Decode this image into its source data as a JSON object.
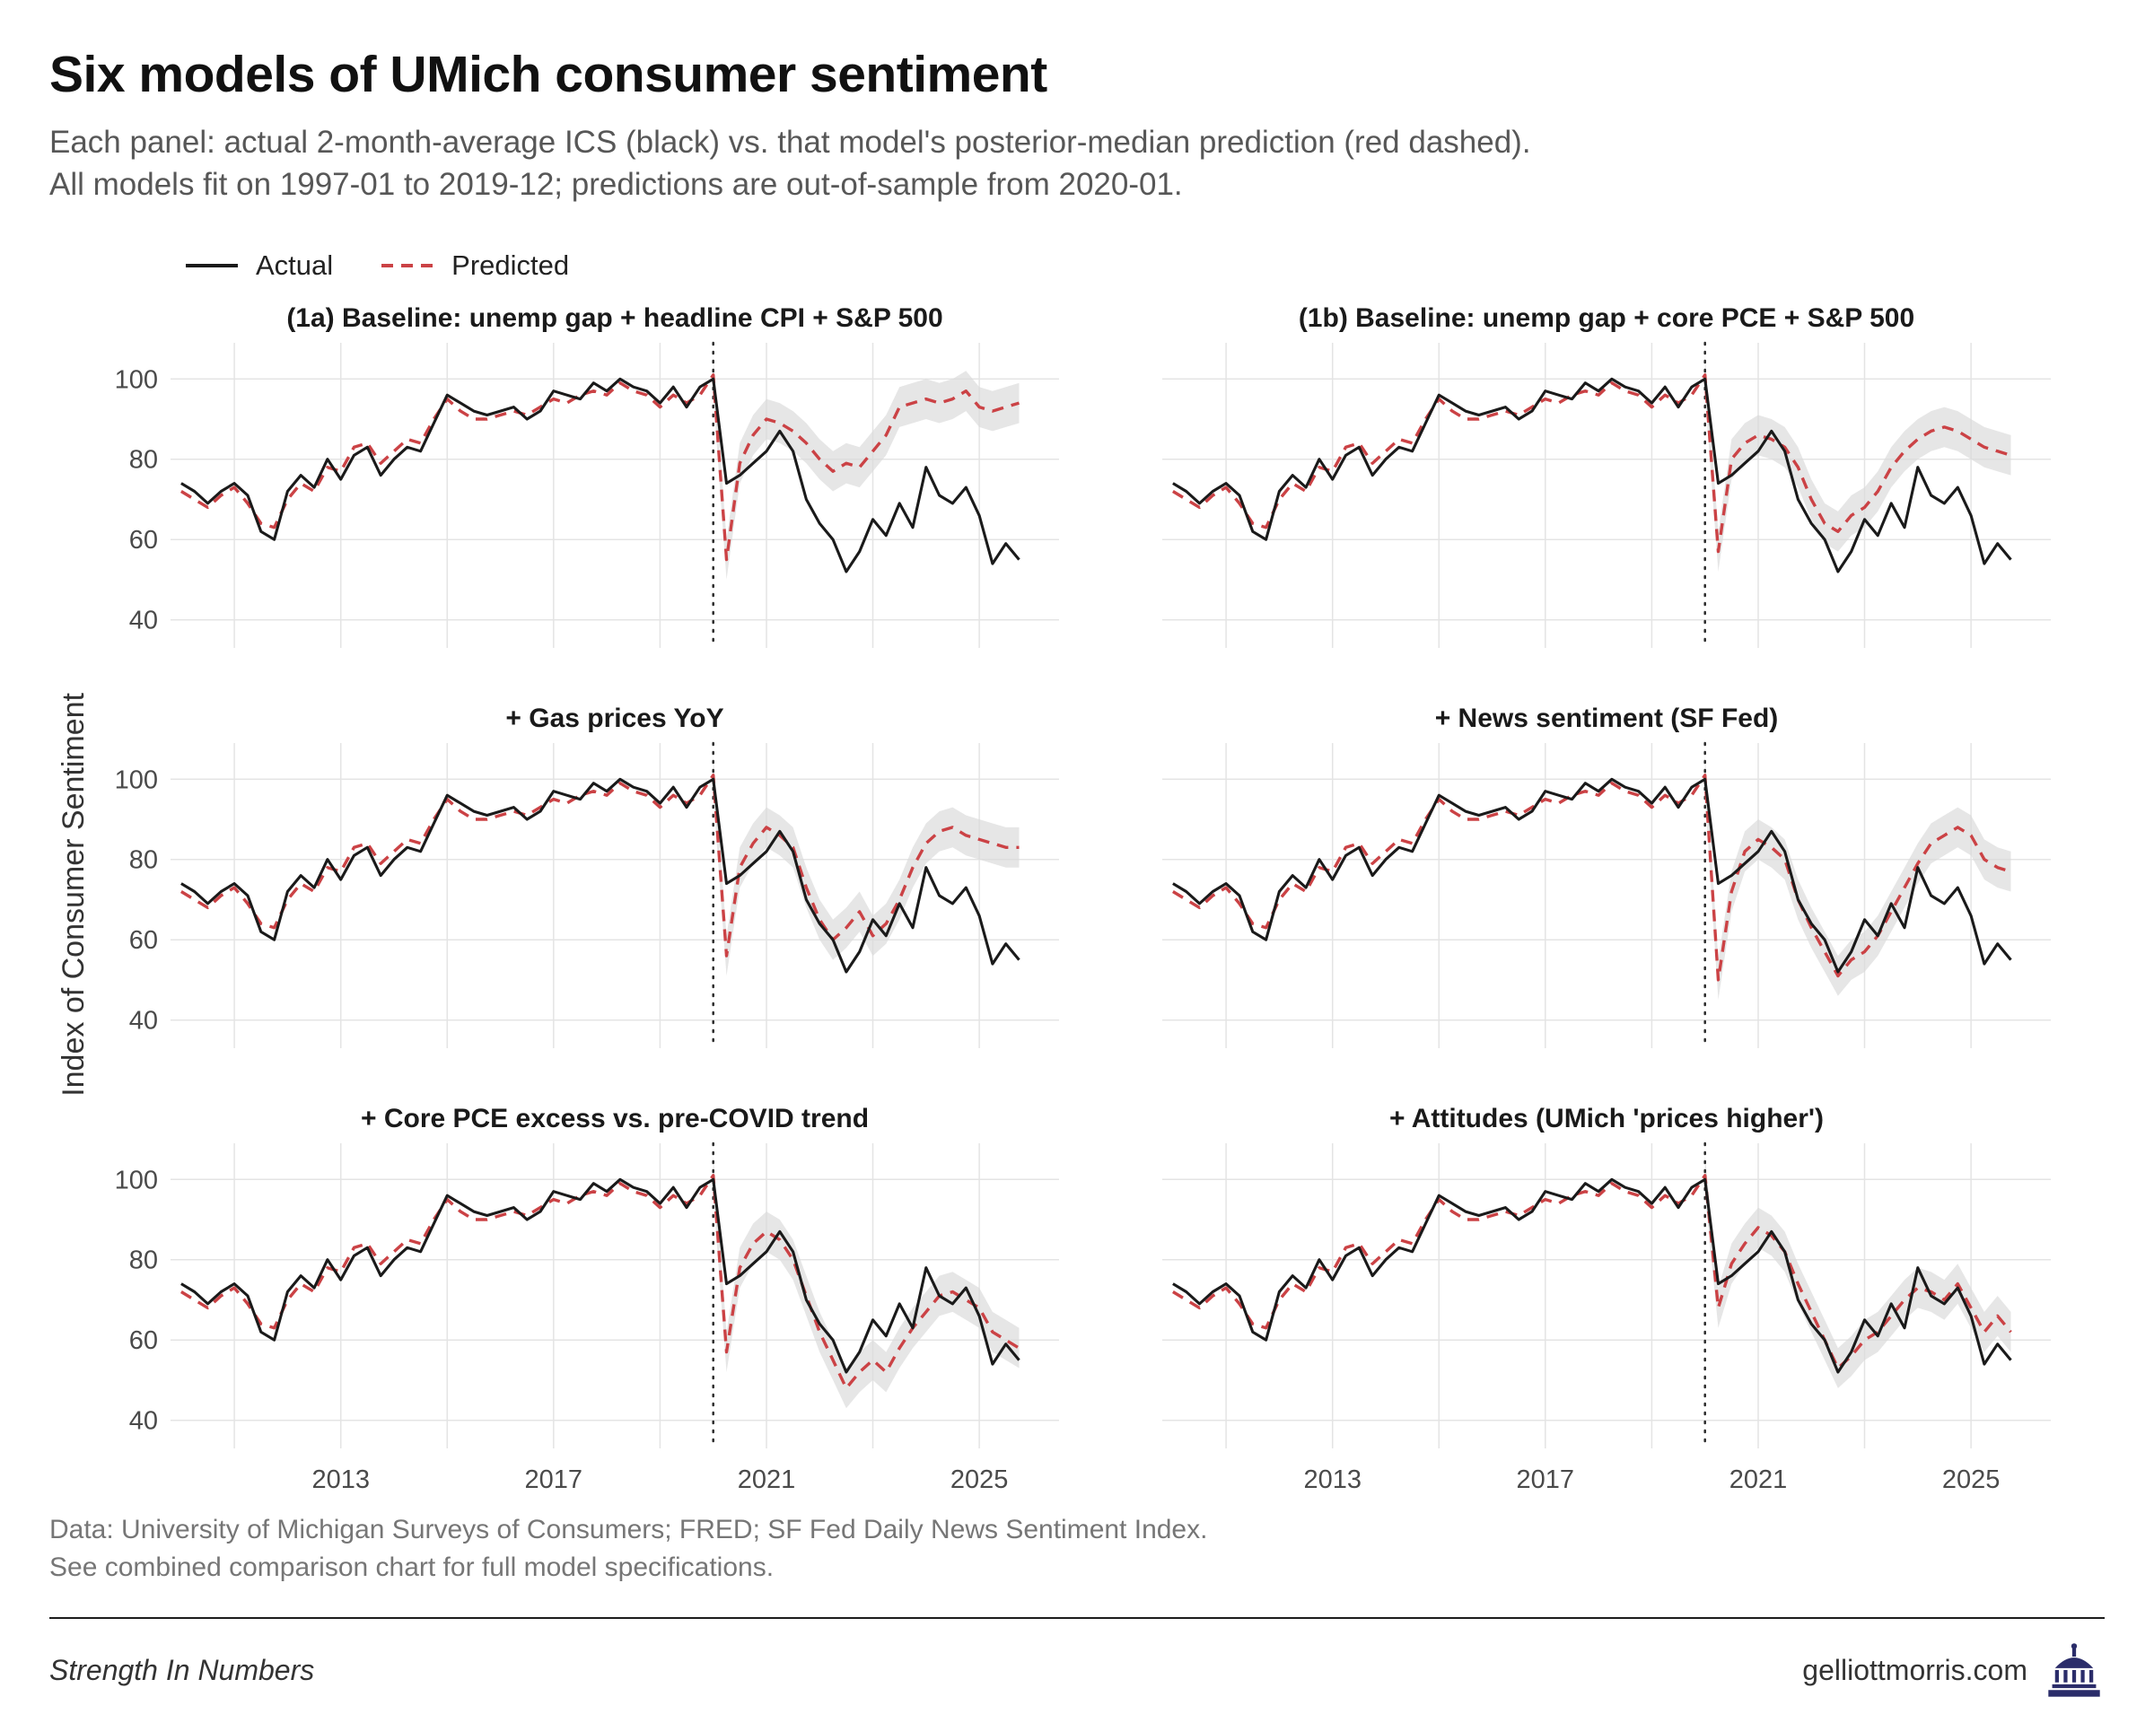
{
  "page": {
    "title": "Six models of UMich consumer sentiment",
    "subtitle_line1": "Each panel: actual 2-month-average ICS (black) vs. that model's posterior-median prediction (red dashed).",
    "subtitle_line2": "All models fit on 1997-01 to 2019-12; predictions are out-of-sample from 2020-01.",
    "legend": {
      "actual": "Actual",
      "predicted": "Predicted"
    },
    "ylabel": "Index of Consumer Sentiment",
    "caption_line1": "Data: University of Michigan Surveys of Consumers; FRED; SF Fed Daily News Sentiment Index.",
    "caption_line2": "See combined comparison chart for full model specifications.",
    "footer_left": "Strength In Numbers",
    "footer_right": "gelliottmorris.com"
  },
  "colors": {
    "actual": "#1a1a1a",
    "predicted": "#cb4245",
    "band": "#d8d8d8",
    "grid": "#e4e4e4",
    "vline": "#2a2a2a",
    "tick_text": "#4a4a4a",
    "logo": "#2b2d6a"
  },
  "chart_data": {
    "type": "line",
    "title": "Six models of UMich consumer sentiment",
    "xlabel": "",
    "ylabel": "Index of Consumer Sentiment",
    "xlim": [
      2009.8,
      2026.5
    ],
    "ylim": [
      33,
      109
    ],
    "x_ticks": [
      2013,
      2017,
      2021,
      2025
    ],
    "y_ticks": [
      40,
      60,
      80,
      100
    ],
    "vline_x": 2020,
    "band_halfwidth": 5,
    "legend_position": "top-left",
    "grid": true,
    "x": [
      2010,
      2010.25,
      2010.5,
      2010.75,
      2011,
      2011.25,
      2011.5,
      2011.75,
      2012,
      2012.25,
      2012.5,
      2012.75,
      2013,
      2013.25,
      2013.5,
      2013.75,
      2014,
      2014.25,
      2014.5,
      2014.75,
      2015,
      2015.25,
      2015.5,
      2015.75,
      2016,
      2016.25,
      2016.5,
      2016.75,
      2017,
      2017.25,
      2017.5,
      2017.75,
      2018,
      2018.25,
      2018.5,
      2018.75,
      2019,
      2019.25,
      2019.5,
      2019.75,
      2020,
      2020.25,
      2020.5,
      2020.75,
      2021,
      2021.25,
      2021.5,
      2021.75,
      2022,
      2022.25,
      2022.5,
      2022.75,
      2023,
      2023.25,
      2023.5,
      2023.75,
      2024,
      2024.25,
      2024.5,
      2024.75,
      2025,
      2025.25,
      2025.5,
      2025.75
    ],
    "actual": [
      74,
      72,
      69,
      72,
      74,
      71,
      62,
      60,
      72,
      76,
      73,
      80,
      75,
      81,
      83,
      76,
      80,
      83,
      82,
      89,
      96,
      94,
      92,
      91,
      92,
      93,
      90,
      92,
      97,
      96,
      95,
      99,
      97,
      100,
      98,
      97,
      94,
      98,
      93,
      98,
      100,
      74,
      76,
      79,
      82,
      87,
      82,
      70,
      64,
      60,
      52,
      57,
      65,
      61,
      69,
      63,
      78,
      71,
      69,
      73,
      66,
      54,
      59,
      55
    ],
    "panels": [
      {
        "title": "(1a) Baseline: unemp gap + headline CPI + S&P 500",
        "predicted": [
          72,
          70,
          68,
          71,
          73,
          69,
          64,
          63,
          70,
          74,
          72,
          78,
          77,
          83,
          84,
          79,
          82,
          85,
          84,
          90,
          95,
          92,
          90,
          90,
          91,
          92,
          91,
          93,
          95,
          94,
          96,
          97,
          96,
          99,
          97,
          96,
          93,
          96,
          94,
          96,
          101,
          55,
          79,
          86,
          90,
          89,
          87,
          84,
          80,
          77,
          79,
          78,
          82,
          86,
          93,
          94,
          95,
          94,
          95,
          97,
          93,
          92,
          93,
          94
        ]
      },
      {
        "title": "(1b) Baseline: unemp gap + core PCE + S&P 500",
        "predicted": [
          72,
          70,
          68,
          71,
          73,
          69,
          64,
          63,
          70,
          74,
          72,
          78,
          77,
          83,
          84,
          79,
          82,
          85,
          84,
          90,
          95,
          92,
          90,
          90,
          91,
          92,
          91,
          93,
          95,
          94,
          96,
          97,
          96,
          99,
          97,
          96,
          93,
          96,
          94,
          96,
          101,
          57,
          80,
          84,
          86,
          85,
          83,
          78,
          70,
          64,
          62,
          66,
          68,
          72,
          78,
          82,
          85,
          87,
          88,
          87,
          85,
          83,
          82,
          81
        ]
      },
      {
        "title": "+ Gas prices YoY",
        "predicted": [
          72,
          70,
          68,
          71,
          73,
          69,
          64,
          63,
          70,
          74,
          72,
          78,
          77,
          83,
          84,
          79,
          82,
          85,
          84,
          90,
          95,
          92,
          90,
          90,
          91,
          92,
          91,
          93,
          95,
          94,
          96,
          97,
          96,
          99,
          97,
          96,
          93,
          96,
          94,
          96,
          101,
          56,
          78,
          84,
          88,
          86,
          83,
          73,
          65,
          60,
          63,
          67,
          61,
          64,
          70,
          78,
          84,
          87,
          88,
          86,
          85,
          84,
          83,
          83
        ]
      },
      {
        "title": "+ News sentiment (SF Fed)",
        "predicted": [
          72,
          70,
          68,
          71,
          73,
          69,
          64,
          63,
          70,
          74,
          72,
          78,
          77,
          83,
          84,
          79,
          82,
          85,
          84,
          90,
          95,
          92,
          90,
          90,
          91,
          92,
          91,
          93,
          95,
          94,
          96,
          97,
          96,
          99,
          97,
          96,
          93,
          96,
          94,
          96,
          101,
          50,
          72,
          82,
          85,
          83,
          80,
          70,
          63,
          57,
          51,
          55,
          57,
          61,
          67,
          73,
          79,
          84,
          86,
          88,
          86,
          80,
          78,
          77
        ]
      },
      {
        "title": "+ Core PCE excess vs. pre-COVID trend",
        "predicted": [
          72,
          70,
          68,
          71,
          73,
          69,
          64,
          63,
          70,
          74,
          72,
          78,
          77,
          83,
          84,
          79,
          82,
          85,
          84,
          90,
          95,
          92,
          90,
          90,
          91,
          92,
          91,
          93,
          95,
          94,
          96,
          97,
          96,
          99,
          97,
          96,
          93,
          96,
          94,
          96,
          101,
          57,
          78,
          84,
          87,
          85,
          80,
          71,
          62,
          55,
          48,
          52,
          55,
          52,
          58,
          63,
          67,
          71,
          72,
          70,
          68,
          62,
          60,
          58
        ]
      },
      {
        "title": "+ Attitudes (UMich 'prices higher')",
        "predicted": [
          72,
          70,
          68,
          71,
          73,
          69,
          64,
          63,
          70,
          74,
          72,
          78,
          77,
          83,
          84,
          79,
          82,
          85,
          84,
          90,
          95,
          92,
          90,
          90,
          91,
          92,
          91,
          93,
          95,
          94,
          96,
          97,
          96,
          99,
          97,
          96,
          93,
          96,
          94,
          96,
          101,
          68,
          79,
          84,
          88,
          86,
          82,
          74,
          67,
          60,
          53,
          56,
          60,
          62,
          66,
          70,
          73,
          72,
          70,
          74,
          68,
          62,
          66,
          62
        ]
      }
    ]
  }
}
